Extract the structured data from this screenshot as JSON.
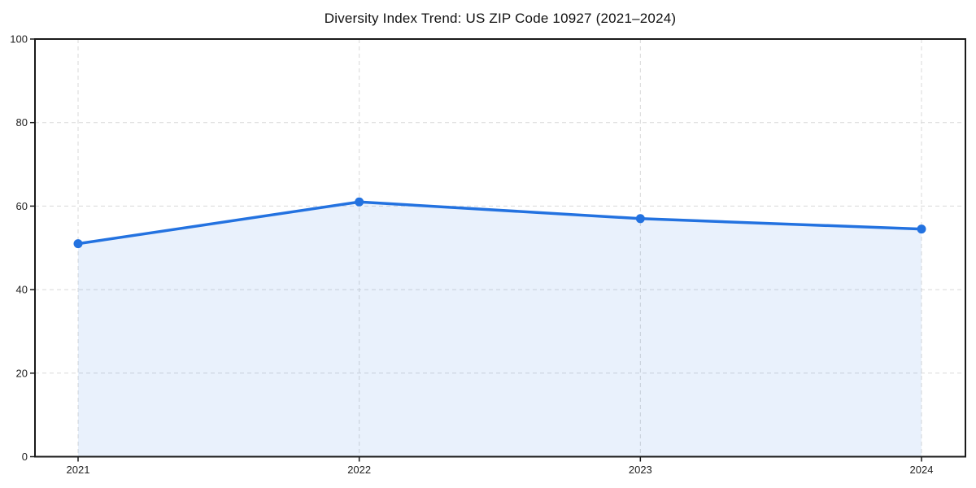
{
  "chart_data": {
    "type": "line",
    "title": "Diversity Index Trend: US ZIP Code 10927 (2021–2024)",
    "categories": [
      "2021",
      "2022",
      "2023",
      "2024"
    ],
    "values": [
      51,
      61,
      57,
      54.5
    ],
    "xlabel": "",
    "ylabel": "",
    "ylim": [
      0,
      100
    ],
    "yticks": [
      0,
      20,
      40,
      60,
      80,
      100
    ],
    "grid": "dashed-both-axes",
    "legend_position": "none",
    "area_fill": true,
    "marker": "circle",
    "colors": {
      "line": "#2372e0",
      "marker": "#2372e0",
      "fill": "rgba(35,114,224,0.10)",
      "grid": "#d9d9d9",
      "axis": "#1a1a1a",
      "tick_text": "#222222",
      "title_text": "#111111",
      "background": "#ffffff"
    }
  }
}
